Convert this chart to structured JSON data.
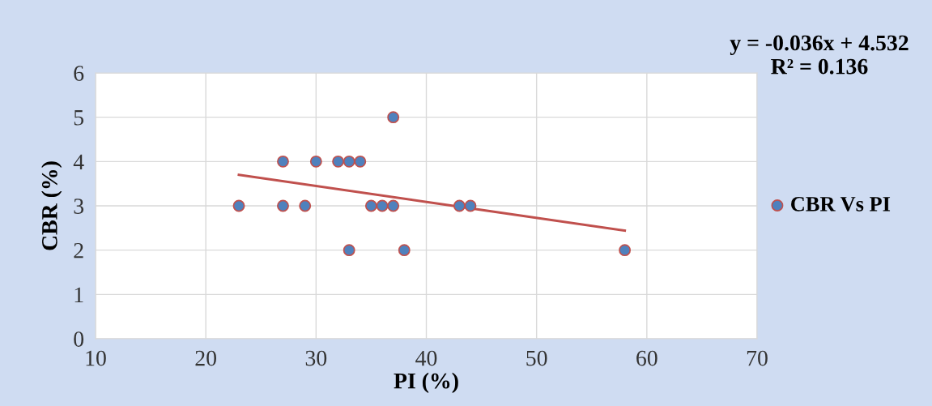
{
  "chart_data": {
    "type": "scatter",
    "xlabel": "PI (%)",
    "ylabel": "CBR (%)",
    "x": [
      23,
      27,
      27,
      29,
      30,
      32,
      33,
      33,
      34,
      35,
      36,
      37,
      37,
      38,
      43,
      44,
      58
    ],
    "series": [
      {
        "name": "CBR Vs PI",
        "color": "#4f81bd",
        "marker": "circle",
        "values": [
          3,
          4,
          3,
          3,
          4,
          4,
          4,
          2,
          4,
          3,
          3,
          5,
          3,
          2,
          3,
          3,
          2
        ]
      },
      {
        "type": "line",
        "color": "#c0504d",
        "x": [
          23,
          58
        ],
        "marker": "none",
        "values": [
          3.7,
          2.44
        ]
      }
    ],
    "annotations": [
      "y = -0.036x + 4.532",
      "R² = 0.136"
    ],
    "xlim": [
      10,
      70
    ],
    "xticks": [
      10,
      20,
      30,
      40,
      50,
      60,
      70
    ],
    "ylim": [
      0,
      6
    ],
    "yticks": [
      0,
      1,
      2,
      3,
      4,
      5,
      6
    ],
    "grid": true,
    "legend": "right"
  }
}
